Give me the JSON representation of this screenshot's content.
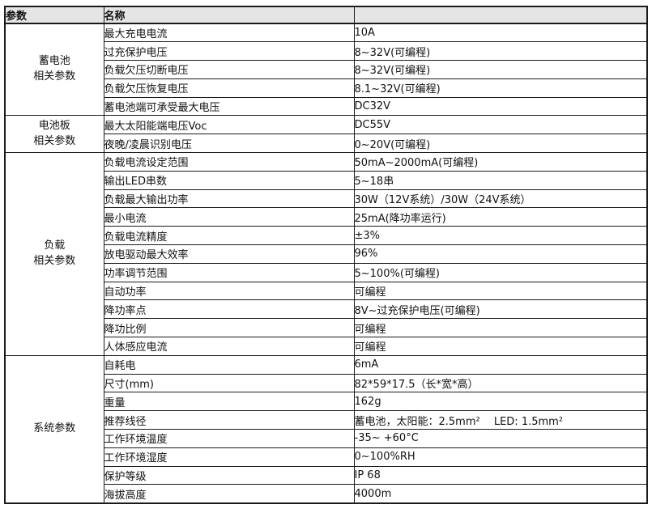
{
  "table": {
    "headers": {
      "param": "参数",
      "name": "名称",
      "value": ""
    },
    "groups": [
      {
        "label": "蓄电池\n相关参数",
        "rows": [
          {
            "name": "最大充电电流",
            "value": "10A"
          },
          {
            "name": "过充保护电压",
            "value": "8~32V(可编程)"
          },
          {
            "name": "负载欠压切断电压",
            "value": "8~32V(可编程)"
          },
          {
            "name": "负载欠压恢复电压",
            "value": "8.1~32V(可编程)"
          },
          {
            "name": "蓄电池端可承受最大电压",
            "value": "DC32V"
          }
        ]
      },
      {
        "label": "电池板\n相关参数",
        "rows": [
          {
            "name": "最大太阳能端电压Voc",
            "value": "DC55V"
          },
          {
            "name": "夜晚/凌晨识别电压",
            "value": "0~20V(可编程)"
          }
        ]
      },
      {
        "label": "负载\n相关参数",
        "rows": [
          {
            "name": "负载电流设定范围",
            "value": "50mA~2000mA(可编程)"
          },
          {
            "name": "输出LED串数",
            "value": "5~18串"
          },
          {
            "name": "负载最大输出功率",
            "value": "30W（12V系统）/30W（24V系统）"
          },
          {
            "name": "最小电流",
            "value": "25mA(降功率运行)"
          },
          {
            "name": "负载电流精度",
            "value": "±3%"
          },
          {
            "name": "放电驱动最大效率",
            "value": "96%"
          },
          {
            "name": "功率调节范围",
            "value": "5~100%(可编程)"
          },
          {
            "name": "自动功率",
            "value": "可编程"
          },
          {
            "name": "降功率点",
            "value": "8V~过充保护电压(可编程)"
          },
          {
            "name": "降功比例",
            "value": "可编程"
          },
          {
            "name": "人体感应电流",
            "value": "可编程"
          }
        ]
      },
      {
        "label": "系统参数",
        "rows": [
          {
            "name": "自耗电",
            "value": "6mA"
          },
          {
            "name": "尺寸(mm)",
            "value": "82*59*17.5（长*宽*高）"
          },
          {
            "name": "重量",
            "value": "162g"
          },
          {
            "name": "推荐线径",
            "value": "蓄电池，太阳能：2.5mm²　 LED: 1.5mm²"
          },
          {
            "name": "工作环境温度",
            "value": "-35~ +60°C"
          },
          {
            "name": "工作环境湿度",
            "value": "0~100%RH"
          },
          {
            "name": "保护等级",
            "value": "IP 68"
          },
          {
            "name": "海拔高度",
            "value": "4000m"
          }
        ]
      }
    ]
  }
}
